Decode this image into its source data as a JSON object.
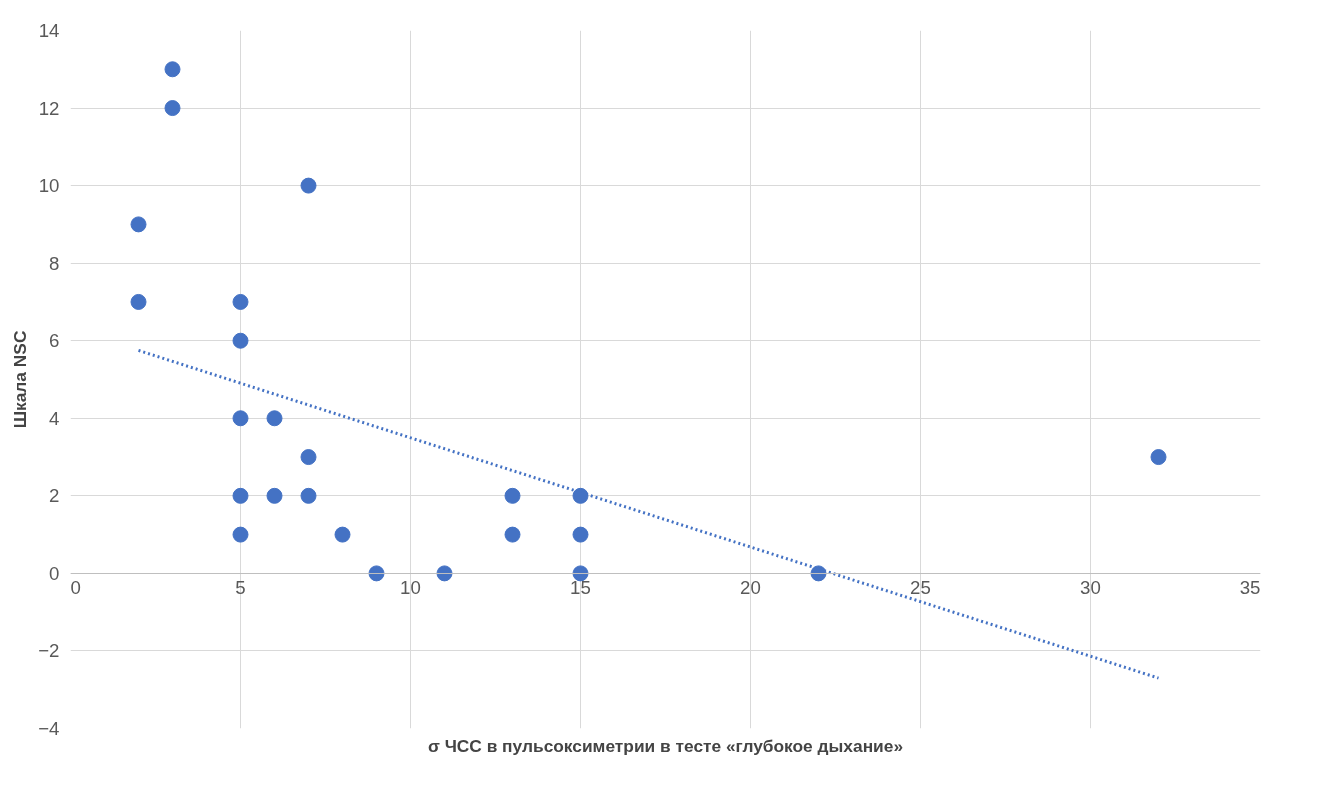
{
  "chart_data": {
    "type": "scatter",
    "xlabel": "σ ЧСС в пульсоксиметрии в тесте «глубокое дыхание»",
    "ylabel": "Шкала NSC",
    "xlim": [
      0,
      35
    ],
    "ylim": [
      -4,
      14
    ],
    "xticks": [
      0,
      5,
      10,
      15,
      20,
      25,
      30,
      35
    ],
    "yticks": [
      -4,
      -2,
      0,
      2,
      4,
      6,
      8,
      10,
      12,
      14
    ],
    "grid": true,
    "marker": "circle",
    "series": [
      {
        "color": "#4472c4",
        "x": [
          2,
          2,
          3,
          3,
          7,
          5,
          5,
          5,
          6,
          7,
          5,
          6,
          7,
          5,
          8,
          9,
          11,
          13,
          13,
          15,
          15,
          15,
          22,
          32
        ],
        "values": [
          9,
          7,
          13,
          12,
          10,
          7,
          6,
          4,
          4,
          3,
          2,
          2,
          2,
          1,
          1,
          0,
          0,
          2,
          1,
          2,
          1,
          0,
          0,
          3
        ]
      },
      {
        "type": "line",
        "color": "#4472c4",
        "marker": "none",
        "line_style": "dotted",
        "x": [
          2,
          32
        ],
        "values": [
          5.75,
          -2.7
        ]
      }
    ]
  }
}
